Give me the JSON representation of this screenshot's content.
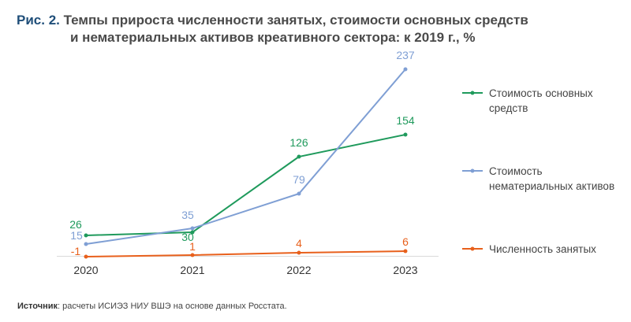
{
  "title": {
    "prefix": "Рис. 2.",
    "line1": "Темпы прироста численности занятых, стоимости основных средств",
    "line2": "и нематериальных активов креативного сектора: к 2019 г., %"
  },
  "source": {
    "label": "Источник",
    "text": ": расчеты ИСИЭЗ НИУ ВШЭ на основе данных Росстата."
  },
  "chart_data": {
    "type": "line",
    "x": [
      "2020",
      "2021",
      "2022",
      "2023"
    ],
    "ylim": [
      -5,
      245
    ],
    "grid": false,
    "legend_position": "right",
    "series": [
      {
        "name": "Стоимость основных средств",
        "name_lines": [
          "Стоимость основных",
          "средств"
        ],
        "color": "#1f9a5c",
        "values": [
          26,
          30,
          126,
          154
        ],
        "labels": [
          "26",
          "30",
          "126",
          "154"
        ]
      },
      {
        "name": "Стоимость нематериальных активов",
        "name_lines": [
          "Стоимость",
          "нематериальных активов"
        ],
        "color": "#7f9fd4",
        "values": [
          15,
          35,
          79,
          237
        ],
        "labels": [
          "15",
          "35",
          "79",
          "237"
        ]
      },
      {
        "name": "Численность занятых",
        "name_lines": [
          "Численность занятых"
        ],
        "color": "#e8601c",
        "values": [
          -1,
          1,
          4,
          6
        ],
        "labels": [
          "-1",
          "1",
          "4",
          "6"
        ]
      }
    ]
  }
}
